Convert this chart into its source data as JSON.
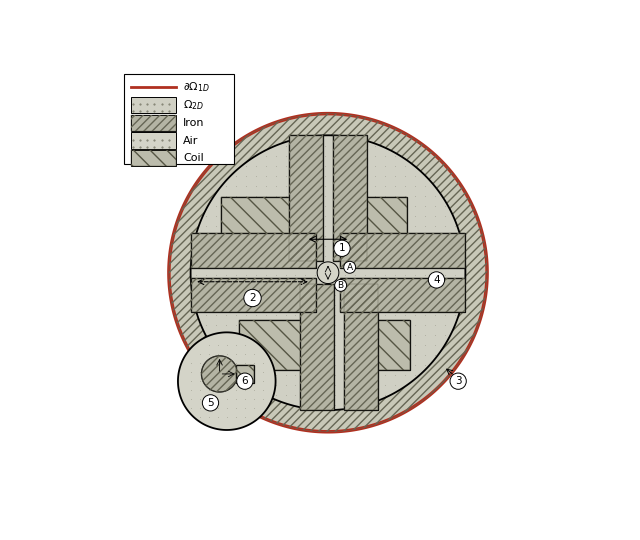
{
  "fig_width": 6.4,
  "fig_height": 5.4,
  "dpi": 100,
  "bg_color": "#ffffff",
  "C_outer_iron": "#c8c8b8",
  "C_omega2d": "#d0d0c4",
  "C_iron": "#b4b4a4",
  "C_coil": "#bcbcac",
  "C_air": "#d4d4c8",
  "outer_r": 0.88,
  "inner_r": 0.76,
  "outer_edge_color": "#b03020",
  "iron_hatch_color": "#666655",
  "coil_hatch_color": "#555544",
  "lw_outer": 2.5,
  "lw_inner": 1.3,
  "lw_pole": 1.0,
  "annotation_fs": 7.5,
  "legend_fs": 8.0
}
